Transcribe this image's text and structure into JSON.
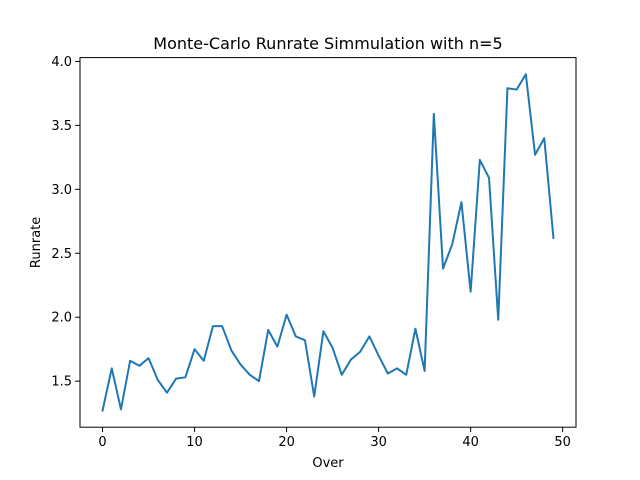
{
  "chart_data": {
    "type": "line",
    "title": "Monte-Carlo Runrate Simmulation with n=5",
    "xlabel": "Over",
    "ylabel": "Runrate",
    "xlim": [
      -2.45,
      51.45
    ],
    "ylim": [
      1.14,
      4.03
    ],
    "xticks": [
      0,
      10,
      20,
      30,
      40,
      50
    ],
    "xtick_labels": [
      "0",
      "10",
      "20",
      "30",
      "40",
      "50"
    ],
    "yticks": [
      1.5,
      2.0,
      2.5,
      3.0,
      3.5,
      4.0
    ],
    "ytick_labels": [
      "1.5",
      "2.0",
      "2.5",
      "3.0",
      "3.5",
      "4.0"
    ],
    "grid": false,
    "series": [
      {
        "color": "#1f77b4",
        "x": [
          0,
          1,
          2,
          3,
          4,
          5,
          6,
          7,
          8,
          9,
          10,
          11,
          12,
          13,
          14,
          15,
          16,
          17,
          18,
          19,
          20,
          21,
          22,
          23,
          24,
          25,
          26,
          27,
          28,
          29,
          30,
          31,
          32,
          33,
          34,
          35,
          36,
          37,
          38,
          39,
          40,
          41,
          42,
          43,
          44,
          45,
          46,
          47,
          48,
          49
        ],
        "y": [
          1.27,
          1.6,
          1.28,
          1.66,
          1.62,
          1.68,
          1.51,
          1.41,
          1.52,
          1.53,
          1.75,
          1.66,
          1.93,
          1.93,
          1.74,
          1.63,
          1.55,
          1.5,
          1.9,
          1.77,
          2.02,
          1.85,
          1.82,
          1.38,
          1.89,
          1.76,
          1.55,
          1.67,
          1.73,
          1.85,
          1.7,
          1.56,
          1.6,
          1.55,
          1.91,
          1.58,
          3.59,
          2.38,
          2.57,
          2.9,
          2.2,
          3.23,
          3.09,
          1.98,
          3.79,
          3.78,
          3.9,
          3.27,
          3.4,
          2.62
        ]
      }
    ]
  }
}
